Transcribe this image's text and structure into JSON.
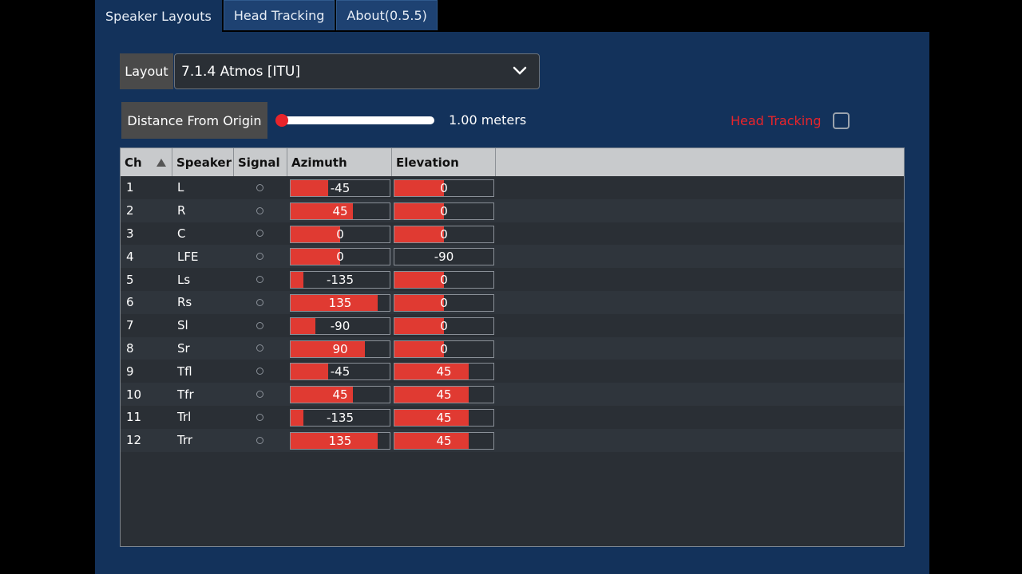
{
  "tabs": [
    {
      "label": "Speaker Layouts",
      "active": true
    },
    {
      "label": "Head Tracking",
      "active": false
    },
    {
      "label": "About(0.5.5)",
      "active": false
    }
  ],
  "layout": {
    "label": "Layout",
    "selected": "7.1.4 Atmos [ITU]"
  },
  "distance": {
    "label": "Distance From Origin",
    "value_text": "1.00 meters",
    "slider_fraction": 0.0
  },
  "head_tracking": {
    "label": "Head Tracking",
    "checked": false
  },
  "table": {
    "headers": [
      "Ch",
      "Speaker",
      "Signal",
      "Azimuth",
      "Elevation"
    ],
    "sort": {
      "column": "Ch",
      "direction": "ascending"
    },
    "azimuth_range": [
      -180,
      180
    ],
    "elevation_range": [
      -90,
      90
    ],
    "rows": [
      {
        "ch": "1",
        "speaker": "L",
        "azimuth": "-45",
        "elevation": "0"
      },
      {
        "ch": "2",
        "speaker": "R",
        "azimuth": "45",
        "elevation": "0"
      },
      {
        "ch": "3",
        "speaker": "C",
        "azimuth": "0",
        "elevation": "0"
      },
      {
        "ch": "4",
        "speaker": "LFE",
        "azimuth": "0",
        "elevation": "-90"
      },
      {
        "ch": "5",
        "speaker": "Ls",
        "azimuth": "-135",
        "elevation": "0"
      },
      {
        "ch": "6",
        "speaker": "Rs",
        "azimuth": "135",
        "elevation": "0"
      },
      {
        "ch": "7",
        "speaker": "Sl",
        "azimuth": "-90",
        "elevation": "0"
      },
      {
        "ch": "8",
        "speaker": "Sr",
        "azimuth": "90",
        "elevation": "0"
      },
      {
        "ch": "9",
        "speaker": "Tfl",
        "azimuth": "-45",
        "elevation": "45"
      },
      {
        "ch": "10",
        "speaker": "Tfr",
        "azimuth": "45",
        "elevation": "45"
      },
      {
        "ch": "11",
        "speaker": "Trl",
        "azimuth": "-135",
        "elevation": "45"
      },
      {
        "ch": "12",
        "speaker": "Trr",
        "azimuth": "135",
        "elevation": "45"
      }
    ]
  },
  "colors": {
    "accent": "#e03a32",
    "panel": "#13325b",
    "tab_inactive": "#1e4272"
  },
  "icons": {
    "dropdown": "chevron-down-icon",
    "sort": "sort-ascending-icon",
    "signal": "signal-indicator-icon"
  }
}
